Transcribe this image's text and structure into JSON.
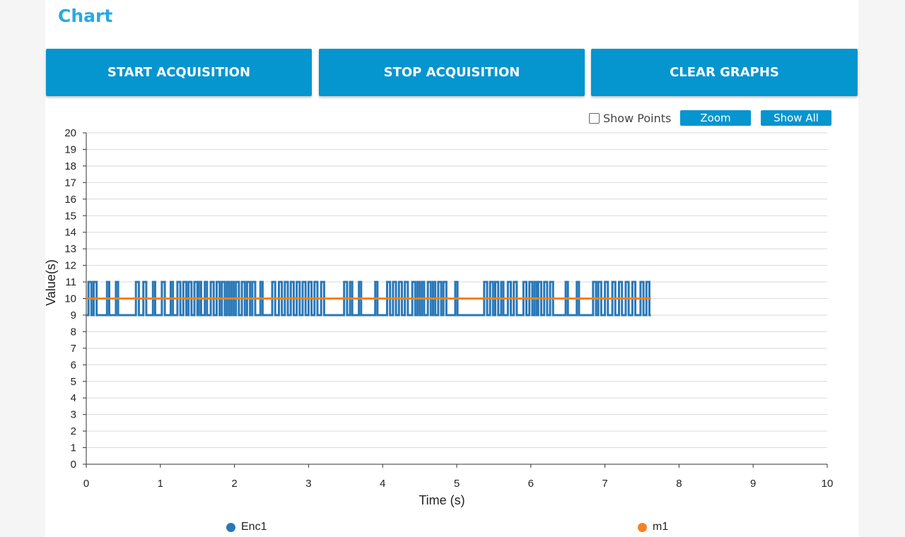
{
  "header": {
    "title": "Chart"
  },
  "buttons": {
    "start": "START ACQUISITION",
    "stop": "STOP ACQUISITION",
    "clear": "CLEAR GRAPHS"
  },
  "controls": {
    "show_points_label": "Show Points",
    "show_points_checked": false,
    "zoom_label": "Zoom",
    "show_all_label": "Show All"
  },
  "colors": {
    "accent": "#0595cf",
    "title": "#29a9e0",
    "enc1": "#2a78b8",
    "m1": "#f5821f"
  },
  "chart_data": {
    "type": "line",
    "xlabel": "Time (s)",
    "ylabel": "Value(s)",
    "xlim": [
      0,
      10
    ],
    "ylim": [
      0,
      20
    ],
    "xticks": [
      0,
      1,
      2,
      3,
      4,
      5,
      6,
      7,
      8,
      9,
      10
    ],
    "yticks": [
      0,
      1,
      2,
      3,
      4,
      5,
      6,
      7,
      8,
      9,
      10,
      11,
      12,
      13,
      14,
      15,
      16,
      17,
      18,
      19,
      20
    ],
    "grid": true,
    "legend_position": "bottom",
    "series": [
      {
        "name": "Enc1",
        "color": "#2a78b8",
        "kind": "square-wave",
        "low": 9,
        "high": 11,
        "x_end": 7.62,
        "transitions_high": [
          0.03,
          0.07,
          0.1,
          0.14,
          0.28,
          0.31,
          0.4,
          0.43,
          0.67,
          0.71,
          0.77,
          0.81,
          0.9,
          0.93,
          1.02,
          1.06,
          1.14,
          1.17,
          1.23,
          1.27,
          1.31,
          1.35,
          1.38,
          1.42,
          1.46,
          1.5,
          1.52,
          1.55,
          1.6,
          1.63,
          1.68,
          1.72,
          1.76,
          1.8,
          1.83,
          1.87,
          1.9,
          1.93,
          1.96,
          1.99,
          2.02,
          2.06,
          2.1,
          2.14,
          2.17,
          2.21,
          2.24,
          2.28,
          2.35,
          2.38,
          2.51,
          2.55,
          2.6,
          2.64,
          2.68,
          2.72,
          2.76,
          2.8,
          2.84,
          2.88,
          2.92,
          2.96,
          3.0,
          3.04,
          3.08,
          3.12,
          3.17,
          3.21,
          3.48,
          3.52,
          3.56,
          3.59,
          3.68,
          3.71,
          3.9,
          3.93,
          4.06,
          4.1,
          4.14,
          4.18,
          4.22,
          4.26,
          4.3,
          4.34,
          4.4,
          4.44,
          4.47,
          4.5,
          4.53,
          4.56,
          4.61,
          4.65,
          4.68,
          4.71,
          4.75,
          4.79,
          4.82,
          4.86,
          4.98,
          5.01,
          5.37,
          5.41,
          5.45,
          5.49,
          5.52,
          5.56,
          5.6,
          5.63,
          5.69,
          5.73,
          5.77,
          5.81,
          5.9,
          5.94,
          5.98,
          6.02,
          6.05,
          6.08,
          6.1,
          6.14,
          6.18,
          6.22,
          6.26,
          6.3,
          6.47,
          6.5,
          6.62,
          6.65,
          6.84,
          6.88,
          6.91,
          6.95,
          7.0,
          7.04,
          7.1,
          7.14,
          7.19,
          7.23,
          7.28,
          7.32,
          7.37,
          7.41,
          7.48,
          7.52,
          7.56,
          7.6
        ]
      },
      {
        "name": "m1",
        "color": "#f5821f",
        "kind": "line",
        "x": [
          0,
          7.62
        ],
        "y": [
          10,
          10
        ]
      }
    ]
  }
}
